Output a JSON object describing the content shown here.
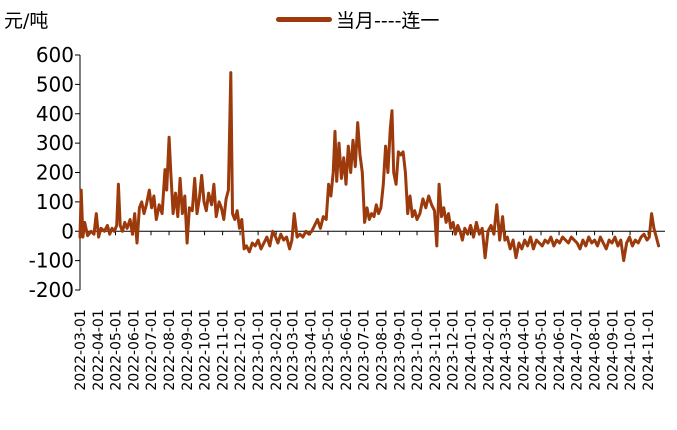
{
  "chart_data": {
    "type": "line",
    "title": "",
    "unit_label": "元/吨",
    "xlabel": "",
    "ylabel": "",
    "ylim": [
      -200,
      600
    ],
    "yticks": [
      -200,
      -100,
      0,
      100,
      200,
      300,
      400,
      500,
      600
    ],
    "xlim": [
      "2022-03-01",
      "2024-11-30"
    ],
    "xticks": [
      "2022-03-01",
      "2022-04-01",
      "2022-05-01",
      "2022-06-01",
      "2022-07-01",
      "2022-08-01",
      "2022-09-01",
      "2022-10-01",
      "2022-11-01",
      "2022-12-01",
      "2023-01-01",
      "2023-02-01",
      "2023-03-01",
      "2023-04-01",
      "2023-05-01",
      "2023-06-01",
      "2023-07-01",
      "2023-08-01",
      "2023-09-01",
      "2023-10-01",
      "2023-11-01",
      "2023-12-01",
      "2024-01-01",
      "2024-02-01",
      "2024-03-01",
      "2024-04-01",
      "2024-05-01",
      "2024-06-01",
      "2024-07-01",
      "2024-08-01",
      "2024-09-01",
      "2024-10-01",
      "2024-11-01"
    ],
    "grid": false,
    "legend_position": "top",
    "series": [
      {
        "name": "当月----连一",
        "color": "#9c3a0c",
        "points": [
          [
            "2022-03-01",
            -20
          ],
          [
            "2022-03-03",
            140
          ],
          [
            "2022-03-06",
            -20
          ],
          [
            "2022-03-09",
            30
          ],
          [
            "2022-03-14",
            -15
          ],
          [
            "2022-03-20",
            0
          ],
          [
            "2022-03-25",
            -10
          ],
          [
            "2022-03-29",
            60
          ],
          [
            "2022-04-02",
            -20
          ],
          [
            "2022-04-06",
            10
          ],
          [
            "2022-04-12",
            0
          ],
          [
            "2022-04-17",
            20
          ],
          [
            "2022-04-21",
            -10
          ],
          [
            "2022-04-25",
            10
          ],
          [
            "2022-04-29",
            0
          ],
          [
            "2022-05-03",
            20
          ],
          [
            "2022-05-06",
            160
          ],
          [
            "2022-05-09",
            20
          ],
          [
            "2022-05-13",
            0
          ],
          [
            "2022-05-17",
            30
          ],
          [
            "2022-05-21",
            10
          ],
          [
            "2022-05-26",
            40
          ],
          [
            "2022-05-30",
            -10
          ],
          [
            "2022-06-03",
            60
          ],
          [
            "2022-06-07",
            -40
          ],
          [
            "2022-06-11",
            80
          ],
          [
            "2022-06-15",
            100
          ],
          [
            "2022-06-19",
            60
          ],
          [
            "2022-06-23",
            90
          ],
          [
            "2022-06-28",
            140
          ],
          [
            "2022-07-02",
            80
          ],
          [
            "2022-07-06",
            120
          ],
          [
            "2022-07-10",
            40
          ],
          [
            "2022-07-15",
            90
          ],
          [
            "2022-07-20",
            60
          ],
          [
            "2022-07-25",
            210
          ],
          [
            "2022-07-28",
            140
          ],
          [
            "2022-08-01",
            320
          ],
          [
            "2022-08-04",
            200
          ],
          [
            "2022-08-08",
            60
          ],
          [
            "2022-08-12",
            130
          ],
          [
            "2022-08-16",
            50
          ],
          [
            "2022-08-20",
            180
          ],
          [
            "2022-08-24",
            60
          ],
          [
            "2022-08-28",
            120
          ],
          [
            "2022-09-01",
            -40
          ],
          [
            "2022-09-05",
            80
          ],
          [
            "2022-09-10",
            70
          ],
          [
            "2022-09-14",
            180
          ],
          [
            "2022-09-18",
            60
          ],
          [
            "2022-09-22",
            110
          ],
          [
            "2022-09-26",
            190
          ],
          [
            "2022-09-30",
            100
          ],
          [
            "2022-10-04",
            70
          ],
          [
            "2022-10-08",
            130
          ],
          [
            "2022-10-13",
            90
          ],
          [
            "2022-10-17",
            160
          ],
          [
            "2022-10-21",
            50
          ],
          [
            "2022-10-26",
            100
          ],
          [
            "2022-10-30",
            80
          ],
          [
            "2022-11-03",
            40
          ],
          [
            "2022-11-07",
            110
          ],
          [
            "2022-11-11",
            140
          ],
          [
            "2022-11-15",
            540
          ],
          [
            "2022-11-18",
            60
          ],
          [
            "2022-11-22",
            40
          ],
          [
            "2022-11-26",
            70
          ],
          [
            "2022-11-30",
            10
          ],
          [
            "2022-12-04",
            40
          ],
          [
            "2022-12-08",
            -60
          ],
          [
            "2022-12-12",
            -50
          ],
          [
            "2022-12-17",
            -70
          ],
          [
            "2022-12-22",
            -40
          ],
          [
            "2022-12-27",
            -50
          ],
          [
            "2023-01-01",
            -30
          ],
          [
            "2023-01-06",
            -60
          ],
          [
            "2023-01-11",
            -40
          ],
          [
            "2023-01-16",
            -20
          ],
          [
            "2023-01-21",
            -50
          ],
          [
            "2023-01-26",
            0
          ],
          [
            "2023-01-31",
            -20
          ],
          [
            "2023-02-04",
            -40
          ],
          [
            "2023-02-09",
            -10
          ],
          [
            "2023-02-14",
            -30
          ],
          [
            "2023-02-19",
            -20
          ],
          [
            "2023-02-24",
            -60
          ],
          [
            "2023-02-28",
            -30
          ],
          [
            "2023-03-04",
            60
          ],
          [
            "2023-03-09",
            -20
          ],
          [
            "2023-03-14",
            -10
          ],
          [
            "2023-03-19",
            -20
          ],
          [
            "2023-03-24",
            0
          ],
          [
            "2023-03-29",
            -10
          ],
          [
            "2023-04-03",
            0
          ],
          [
            "2023-04-08",
            20
          ],
          [
            "2023-04-13",
            40
          ],
          [
            "2023-04-18",
            10
          ],
          [
            "2023-04-23",
            50
          ],
          [
            "2023-04-28",
            40
          ],
          [
            "2023-05-02",
            160
          ],
          [
            "2023-05-06",
            120
          ],
          [
            "2023-05-10",
            200
          ],
          [
            "2023-05-13",
            340
          ],
          [
            "2023-05-16",
            170
          ],
          [
            "2023-05-20",
            300
          ],
          [
            "2023-05-24",
            180
          ],
          [
            "2023-05-28",
            250
          ],
          [
            "2023-06-01",
            160
          ],
          [
            "2023-06-05",
            290
          ],
          [
            "2023-06-09",
            200
          ],
          [
            "2023-06-13",
            310
          ],
          [
            "2023-06-17",
            220
          ],
          [
            "2023-06-21",
            370
          ],
          [
            "2023-06-25",
            260
          ],
          [
            "2023-06-29",
            200
          ],
          [
            "2023-07-03",
            30
          ],
          [
            "2023-07-07",
            80
          ],
          [
            "2023-07-11",
            40
          ],
          [
            "2023-07-15",
            60
          ],
          [
            "2023-07-19",
            50
          ],
          [
            "2023-07-23",
            90
          ],
          [
            "2023-07-27",
            60
          ],
          [
            "2023-07-31",
            80
          ],
          [
            "2023-08-04",
            160
          ],
          [
            "2023-08-08",
            290
          ],
          [
            "2023-08-12",
            200
          ],
          [
            "2023-08-16",
            350
          ],
          [
            "2023-08-19",
            410
          ],
          [
            "2023-08-22",
            200
          ],
          [
            "2023-08-26",
            160
          ],
          [
            "2023-08-30",
            270
          ],
          [
            "2023-09-03",
            260
          ],
          [
            "2023-09-07",
            270
          ],
          [
            "2023-09-11",
            200
          ],
          [
            "2023-09-15",
            60
          ],
          [
            "2023-09-19",
            120
          ],
          [
            "2023-09-23",
            50
          ],
          [
            "2023-09-27",
            70
          ],
          [
            "2023-10-01",
            40
          ],
          [
            "2023-10-06",
            60
          ],
          [
            "2023-10-11",
            110
          ],
          [
            "2023-10-16",
            80
          ],
          [
            "2023-10-21",
            120
          ],
          [
            "2023-10-26",
            90
          ],
          [
            "2023-10-31",
            70
          ],
          [
            "2023-11-04",
            -50
          ],
          [
            "2023-11-08",
            160
          ],
          [
            "2023-11-12",
            50
          ],
          [
            "2023-11-16",
            80
          ],
          [
            "2023-11-20",
            30
          ],
          [
            "2023-11-24",
            60
          ],
          [
            "2023-11-28",
            10
          ],
          [
            "2023-12-02",
            30
          ],
          [
            "2023-12-06",
            -10
          ],
          [
            "2023-12-10",
            20
          ],
          [
            "2023-12-14",
            0
          ],
          [
            "2023-12-18",
            -30
          ],
          [
            "2023-12-22",
            10
          ],
          [
            "2023-12-27",
            -10
          ],
          [
            "2024-01-01",
            20
          ],
          [
            "2024-01-06",
            -20
          ],
          [
            "2024-01-11",
            30
          ],
          [
            "2024-01-16",
            -10
          ],
          [
            "2024-01-21",
            10
          ],
          [
            "2024-01-26",
            -90
          ],
          [
            "2024-01-31",
            0
          ],
          [
            "2024-02-05",
            20
          ],
          [
            "2024-02-10",
            -10
          ],
          [
            "2024-02-15",
            90
          ],
          [
            "2024-02-20",
            -30
          ],
          [
            "2024-02-25",
            50
          ],
          [
            "2024-02-29",
            -30
          ],
          [
            "2024-03-04",
            -20
          ],
          [
            "2024-03-09",
            -60
          ],
          [
            "2024-03-14",
            -30
          ],
          [
            "2024-03-19",
            -90
          ],
          [
            "2024-03-24",
            -40
          ],
          [
            "2024-03-29",
            -60
          ],
          [
            "2024-04-03",
            -30
          ],
          [
            "2024-04-08",
            -50
          ],
          [
            "2024-04-13",
            -20
          ],
          [
            "2024-04-18",
            -60
          ],
          [
            "2024-04-23",
            -30
          ],
          [
            "2024-04-28",
            -40
          ],
          [
            "2024-05-03",
            -50
          ],
          [
            "2024-05-08",
            -30
          ],
          [
            "2024-05-13",
            -40
          ],
          [
            "2024-05-18",
            -20
          ],
          [
            "2024-05-23",
            -50
          ],
          [
            "2024-05-28",
            -30
          ],
          [
            "2024-06-02",
            -40
          ],
          [
            "2024-06-07",
            -20
          ],
          [
            "2024-06-12",
            -30
          ],
          [
            "2024-06-17",
            -40
          ],
          [
            "2024-06-22",
            -20
          ],
          [
            "2024-06-27",
            -30
          ],
          [
            "2024-07-02",
            -40
          ],
          [
            "2024-07-07",
            -60
          ],
          [
            "2024-07-12",
            -30
          ],
          [
            "2024-07-17",
            -50
          ],
          [
            "2024-07-22",
            -20
          ],
          [
            "2024-07-27",
            -40
          ],
          [
            "2024-08-01",
            -30
          ],
          [
            "2024-08-06",
            -50
          ],
          [
            "2024-08-11",
            -20
          ],
          [
            "2024-08-16",
            -40
          ],
          [
            "2024-08-21",
            -60
          ],
          [
            "2024-08-26",
            -30
          ],
          [
            "2024-08-31",
            -40
          ],
          [
            "2024-09-05",
            -20
          ],
          [
            "2024-09-10",
            -50
          ],
          [
            "2024-09-15",
            -30
          ],
          [
            "2024-09-20",
            -100
          ],
          [
            "2024-09-25",
            -40
          ],
          [
            "2024-09-30",
            -20
          ],
          [
            "2024-10-05",
            -50
          ],
          [
            "2024-10-10",
            -30
          ],
          [
            "2024-10-15",
            -40
          ],
          [
            "2024-10-20",
            -20
          ],
          [
            "2024-10-25",
            -10
          ],
          [
            "2024-10-30",
            -30
          ],
          [
            "2024-11-03",
            -20
          ],
          [
            "2024-11-07",
            60
          ],
          [
            "2024-11-11",
            10
          ],
          [
            "2024-11-15",
            -20
          ],
          [
            "2024-11-19",
            -50
          ]
        ]
      }
    ]
  }
}
